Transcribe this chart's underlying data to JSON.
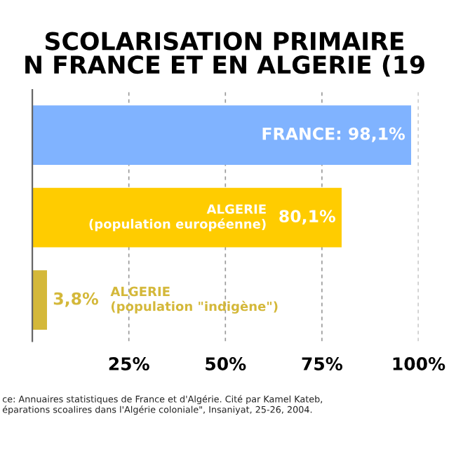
{
  "chart_data": {
    "type": "bar",
    "orientation": "horizontal",
    "title": "SCOLARISATION PRIMAIRE\nN FRANCE ET EN ALGERIE (19",
    "categories": [
      null,
      "ALGERIE\n(population européenne)",
      "ALGERIE\n(population \"indigène\")"
    ],
    "values": [
      98.1,
      80.1,
      3.8
    ],
    "colors": [
      "#80b3ff",
      "#ffcc00",
      "#d4b83a"
    ],
    "value_labels": [
      "FRANCE: 98,1%",
      "80,1%",
      "3,8%"
    ],
    "xlim": [
      0,
      100
    ],
    "xticks": [
      {
        "value": 25,
        "label": "25%"
      },
      {
        "value": 50,
        "label": "50%"
      },
      {
        "value": 75,
        "label": "75%"
      },
      {
        "value": 100,
        "label": "100%"
      }
    ],
    "grid": "x",
    "annotations": [
      "ce: Annuaires statistiques de France et d'Algérie. Cité par Kamel Kateb,\néparations scoalires dans l'Algérie coloniale\", Insaniyat, 25-26, 2004."
    ]
  }
}
